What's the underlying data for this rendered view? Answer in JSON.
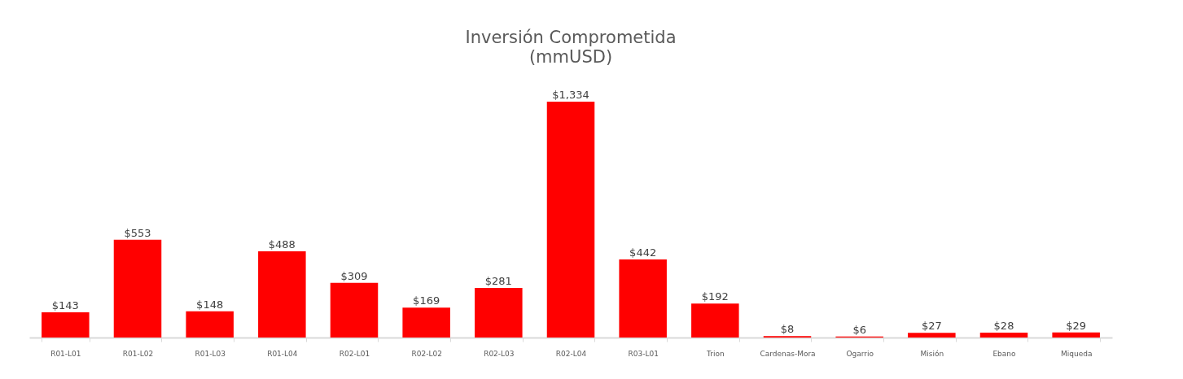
{
  "chart_data": {
    "type": "bar",
    "title": "Inversión Comprometida",
    "subtitle": "(mmUSD)",
    "categories": [
      "R01-L01",
      "R01-L02",
      "R01-L03",
      "R01-L04",
      "R02-L01",
      "R02-L02",
      "R02-L03",
      "R02-L04",
      "R03-L01",
      "Trion",
      "Cardenas-Mora",
      "Ogarrio",
      "Misión",
      "Ebano",
      "Miqueda"
    ],
    "values": [
      143,
      553,
      148,
      488,
      309,
      169,
      281,
      1334,
      442,
      192,
      8,
      6,
      27,
      28,
      29
    ],
    "value_labels": [
      "$143",
      "$553",
      "$148",
      "$488",
      "$309",
      "$169",
      "$281",
      "$1,334",
      "$442",
      "$192",
      "$8",
      "$6",
      "$27",
      "$28",
      "$29"
    ],
    "color": "#ff0000",
    "grid": false
  }
}
